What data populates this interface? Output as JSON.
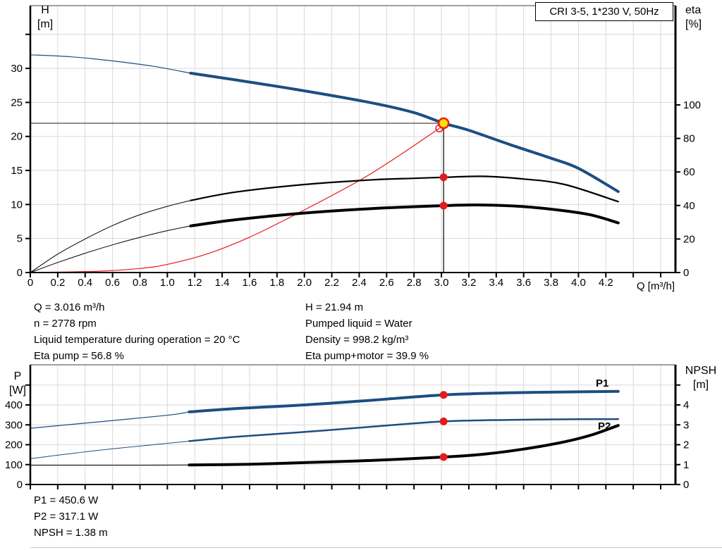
{
  "title_box": {
    "label": "CRI 3-5, 1*230 V, 50Hz"
  },
  "colors": {
    "curve_blue": "#1c4e82",
    "curve_black": "#000000",
    "curve_red": "#e8191c",
    "duty_fill": "#ffe000",
    "dot_red": "#e8191c",
    "grid": "#d9d9d9",
    "border_gray": "#9aa0a4",
    "ref_line": "#4a4a4a",
    "label_blue": "#2e66ae",
    "page_rule": "#c8c8c8"
  },
  "axis_labels": {
    "h_top": "H",
    "h_bottom": "[m]",
    "eta_top": "eta",
    "eta_bottom": "[%]",
    "q": "Q [m³/h]",
    "p_top": "P",
    "p_bottom": "[W]",
    "npsh_top": "NPSH",
    "npsh_bottom": "[m]"
  },
  "curve_labels": {
    "p1": "P1",
    "p2": "P2"
  },
  "annotations": {
    "q": "Q = 3.016 m³/h",
    "n": "n = 2778 rpm",
    "temp": "Liquid temperature during operation = 20 °C",
    "eta_pump": "Eta pump = 56.8 %",
    "h": "H = 21.94 m",
    "liquid": "Pumped liquid = Water",
    "density": "Density = 998.2 kg/m³",
    "eta_pm": "Eta pump+motor = 39.9 %",
    "p1": "P1 = 450.6 W",
    "p2": "P2 = 317.1 W",
    "npsh": "NPSH = 1.38 m"
  },
  "chart_data": [
    {
      "type": "line",
      "name": "qh-eta-chart",
      "x_axis": {
        "label": "Q [m³/h]",
        "min": 0,
        "max": 4.708,
        "tick_step": 0.2,
        "last_labeled": 4.2,
        "grid_last": 4.6
      },
      "left_axis": {
        "label": "H [m]",
        "min": 0,
        "max": 39.22,
        "ticks": [
          0,
          5,
          10,
          15,
          20,
          25,
          30
        ],
        "unlabeled_ticks": [
          35
        ],
        "grid": [
          5,
          10,
          15,
          20,
          25,
          30,
          35
        ]
      },
      "right_axis": {
        "label": "eta [%]",
        "min": 0,
        "max": 159.2,
        "ticks": [
          0,
          20,
          40,
          60,
          80,
          100
        ],
        "unlabeled_ticks": []
      },
      "series": [
        {
          "name": "system-curve",
          "axis": "right_is_false_left",
          "y_axis": "left",
          "color_key": "curve_red",
          "width": 1.2,
          "thin_width": 1.2,
          "thin_until": null,
          "points": [
            [
              0,
              0
            ],
            [
              0.5,
              0.2
            ],
            [
              0.8,
              0.6
            ],
            [
              1.0,
              1.2
            ],
            [
              1.3,
              2.8
            ],
            [
              1.6,
              5.2
            ],
            [
              2.0,
              9.2
            ],
            [
              2.4,
              13.5
            ],
            [
              2.7,
              17.3
            ],
            [
              2.985,
              21.2
            ]
          ]
        },
        {
          "name": "eta-pump-curve",
          "y_axis": "right",
          "color_key": "curve_black",
          "width": 2.2,
          "thin_width": 1,
          "thin_until": 1.17,
          "points": [
            [
              0,
              0
            ],
            [
              0.2,
              11
            ],
            [
              0.4,
              20
            ],
            [
              0.6,
              28
            ],
            [
              0.8,
              34.5
            ],
            [
              1.0,
              39.5
            ],
            [
              1.17,
              43
            ],
            [
              1.5,
              48
            ],
            [
              2.0,
              52.5
            ],
            [
              2.5,
              55.3
            ],
            [
              2.8,
              56.2
            ],
            [
              3.016,
              56.8
            ],
            [
              3.3,
              57.4
            ],
            [
              3.6,
              55.8
            ],
            [
              3.9,
              52.5
            ],
            [
              4.29,
              42.3
            ]
          ]
        },
        {
          "name": "eta-pump-motor-curve",
          "y_axis": "right",
          "color_key": "curve_black",
          "width": 4,
          "thin_width": 1,
          "thin_until": 1.17,
          "points": [
            [
              0,
              0
            ],
            [
              0.2,
              6
            ],
            [
              0.4,
              11.5
            ],
            [
              0.6,
              16.5
            ],
            [
              0.8,
              21
            ],
            [
              1.0,
              25
            ],
            [
              1.17,
              27.8
            ],
            [
              1.5,
              31.5
            ],
            [
              2.0,
              35.5
            ],
            [
              2.5,
              38.2
            ],
            [
              3.016,
              39.9
            ],
            [
              3.3,
              40.3
            ],
            [
              3.6,
              39.3
            ],
            [
              3.9,
              36.8
            ],
            [
              4.1,
              34.2
            ],
            [
              4.29,
              29.6
            ]
          ]
        },
        {
          "name": "qh-curve",
          "y_axis": "left",
          "color_key": "curve_blue",
          "width": 4,
          "thin_width": 1.2,
          "thin_until": 1.17,
          "points": [
            [
              0,
              32.0
            ],
            [
              0.3,
              31.7
            ],
            [
              0.6,
              31.1
            ],
            [
              0.9,
              30.3
            ],
            [
              1.17,
              29.3
            ],
            [
              1.5,
              28.3
            ],
            [
              2.0,
              26.7
            ],
            [
              2.5,
              24.9
            ],
            [
              2.8,
              23.5
            ],
            [
              3.016,
              21.94
            ],
            [
              3.2,
              20.9
            ],
            [
              3.5,
              18.8
            ],
            [
              3.8,
              16.8
            ],
            [
              4.0,
              15.3
            ],
            [
              4.29,
              11.9
            ]
          ]
        }
      ],
      "ref_lines": [
        {
          "dir": "h",
          "y_axis": "left",
          "v": 21.94,
          "q0": 0,
          "q1": 3.016,
          "color_key": "ref_line",
          "width": 1.2
        },
        {
          "dir": "v",
          "q": 3.016,
          "y_axis": "left",
          "v0": 0,
          "v1": 21.94,
          "color_key": "curve_black",
          "width": 1.2
        }
      ],
      "markers": [
        {
          "type": "open",
          "q": 2.985,
          "v": 21.2,
          "y_axis": "left",
          "r": 5
        },
        {
          "type": "duty",
          "q": 3.016,
          "v": 21.94,
          "y_axis": "left",
          "r": 7
        },
        {
          "type": "dot",
          "q": 3.016,
          "v": 56.8,
          "y_axis": "right",
          "r": 5.5
        },
        {
          "type": "dot",
          "q": 3.016,
          "v": 39.9,
          "y_axis": "right",
          "r": 5.5
        }
      ]
    },
    {
      "type": "line",
      "name": "power-npsh-chart",
      "x_axis": {
        "label": "",
        "min": 0,
        "max": 4.708,
        "tick_step": 0.2,
        "last_labeled": -1,
        "grid_last": 4.6
      },
      "left_axis": {
        "label": "P [W]",
        "min": 0,
        "max": 601.8,
        "ticks": [
          0,
          100,
          200,
          300,
          400
        ],
        "unlabeled_ticks": [
          500
        ],
        "grid": [
          100,
          200,
          300,
          400,
          500
        ]
      },
      "right_axis": {
        "label": "NPSH [m]",
        "min": 0,
        "max": 6.018,
        "ticks": [
          0,
          1,
          2,
          3,
          4
        ],
        "unlabeled_ticks": [
          5
        ]
      },
      "series": [
        {
          "name": "p1-curve",
          "y_axis": "left",
          "color_key": "curve_blue",
          "width": 4,
          "thin_width": 1.2,
          "thin_until": 1.16,
          "points": [
            [
              0,
              283
            ],
            [
              0.5,
              315
            ],
            [
              1.0,
              348
            ],
            [
              1.16,
              365
            ],
            [
              1.5,
              382
            ],
            [
              2.0,
              400
            ],
            [
              2.5,
              424
            ],
            [
              3.016,
              450.6
            ],
            [
              3.5,
              461
            ],
            [
              4.0,
              466
            ],
            [
              4.29,
              468
            ]
          ]
        },
        {
          "name": "p2-curve",
          "y_axis": "left",
          "color_key": "curve_blue",
          "width": 2.5,
          "thin_width": 1,
          "thin_until": 1.16,
          "points": [
            [
              0,
              130
            ],
            [
              0.5,
              172
            ],
            [
              1.0,
              207
            ],
            [
              1.16,
              218
            ],
            [
              1.5,
              240
            ],
            [
              2.0,
              264
            ],
            [
              2.5,
              291
            ],
            [
              3.016,
              317.1
            ],
            [
              3.5,
              325
            ],
            [
              4.0,
              328
            ],
            [
              4.29,
              329
            ]
          ]
        },
        {
          "name": "npsh-curve",
          "y_axis": "right",
          "color_key": "curve_black",
          "width": 4,
          "thin_width": 1,
          "thin_until": 1.16,
          "points": [
            [
              0,
              0.97
            ],
            [
              0.8,
              0.97
            ],
            [
              1.16,
              0.98
            ],
            [
              1.6,
              1.02
            ],
            [
              2.0,
              1.1
            ],
            [
              2.5,
              1.21
            ],
            [
              3.016,
              1.38
            ],
            [
              3.3,
              1.52
            ],
            [
              3.6,
              1.78
            ],
            [
              3.9,
              2.15
            ],
            [
              4.1,
              2.5
            ],
            [
              4.29,
              2.97
            ]
          ]
        }
      ],
      "ref_lines": [],
      "markers": [
        {
          "type": "dot",
          "q": 3.016,
          "v": 450.6,
          "y_axis": "left",
          "r": 5.5
        },
        {
          "type": "dot",
          "q": 3.016,
          "v": 317.1,
          "y_axis": "left",
          "r": 5.5
        },
        {
          "type": "dot",
          "q": 3.016,
          "v": 1.38,
          "y_axis": "right",
          "r": 5.5
        }
      ]
    }
  ],
  "operating_point": {
    "q_m3h": 3.016,
    "h_m": 21.94,
    "eta_pump_pct": 56.8,
    "eta_pump_motor_pct": 39.9,
    "p1_w": 450.6,
    "p2_w": 317.1,
    "npsh_m": 1.38
  }
}
